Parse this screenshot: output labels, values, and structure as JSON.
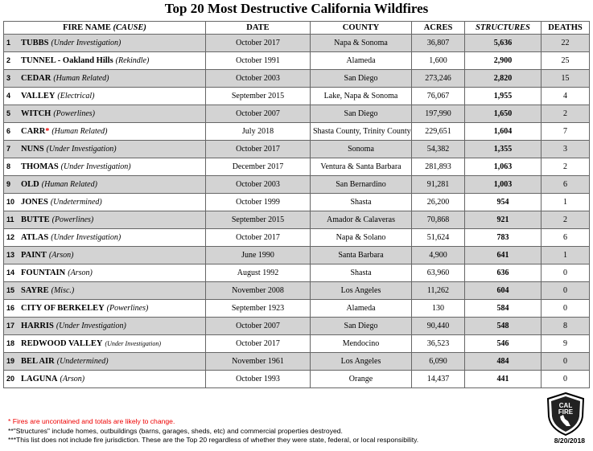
{
  "header": {
    "title": "Top 20 Most Destructive California Wildfires"
  },
  "table": {
    "columns": {
      "name": "FIRE NAME",
      "cause": "(CAUSE)",
      "date": "DATE",
      "county": "COUNTY",
      "acres": "ACRES",
      "structures": "STRUCTURES",
      "deaths": "DEATHS"
    },
    "rows": [
      {
        "rank": 1,
        "name": "TUBBS",
        "cause": "(Under Investigation)",
        "date": "October 2017",
        "county": "Napa & Sonoma",
        "acres": "36,807",
        "structures": "5,636",
        "deaths": 22
      },
      {
        "rank": 2,
        "name": "TUNNEL - Oakland Hills",
        "cause": "(Rekindle)",
        "date": "October 1991",
        "county": "Alameda",
        "acres": "1,600",
        "structures": "2,900",
        "deaths": 25
      },
      {
        "rank": 3,
        "name": "CEDAR",
        "cause": "(Human Related)",
        "date": "October 2003",
        "county": "San Diego",
        "acres": "273,246",
        "structures": "2,820",
        "deaths": 15
      },
      {
        "rank": 4,
        "name": "VALLEY",
        "cause": "(Electrical)",
        "date": "September 2015",
        "county": "Lake, Napa & Sonoma",
        "acres": "76,067",
        "structures": "1,955",
        "deaths": 4
      },
      {
        "rank": 5,
        "name": "WITCH",
        "cause": "(Powerlines)",
        "date": "October 2007",
        "county": "San Diego",
        "acres": "197,990",
        "structures": "1,650",
        "deaths": 2
      },
      {
        "rank": 6,
        "name": "CARR",
        "marker": "*",
        "cause": "(Human Related)",
        "date": "July 2018",
        "county": "Shasta County, Trinity County",
        "acres": "229,651",
        "structures": "1,604",
        "deaths": 7
      },
      {
        "rank": 7,
        "name": "NUNS",
        "cause": "(Under Investigation)",
        "date": "October 2017",
        "county": "Sonoma",
        "acres": "54,382",
        "structures": "1,355",
        "deaths": 3
      },
      {
        "rank": 8,
        "name": "THOMAS",
        "cause": "(Under Investigation)",
        "date": "December 2017",
        "county": "Ventura & Santa Barbara",
        "acres": "281,893",
        "structures": "1,063",
        "deaths": 2
      },
      {
        "rank": 9,
        "name": "OLD",
        "cause": "(Human Related)",
        "date": "October 2003",
        "county": "San Bernardino",
        "acres": "91,281",
        "structures": "1,003",
        "deaths": 6
      },
      {
        "rank": 10,
        "name": "JONES",
        "cause": "(Undetermined)",
        "date": "October 1999",
        "county": "Shasta",
        "acres": "26,200",
        "structures": "954",
        "deaths": 1
      },
      {
        "rank": 11,
        "name": "BUTTE",
        "cause": "(Powerlines)",
        "date": "September 2015",
        "county": "Amador & Calaveras",
        "acres": "70,868",
        "structures": "921",
        "deaths": 2
      },
      {
        "rank": 12,
        "name": "ATLAS",
        "cause": "(Under Investigation)",
        "date": "October 2017",
        "county": "Napa & Solano",
        "acres": "51,624",
        "structures": "783",
        "deaths": 6
      },
      {
        "rank": 13,
        "name": "PAINT",
        "cause": "(Arson)",
        "date": "June 1990",
        "county": "Santa Barbara",
        "acres": "4,900",
        "structures": "641",
        "deaths": 1
      },
      {
        "rank": 14,
        "name": "FOUNTAIN",
        "cause": "(Arson)",
        "date": "August 1992",
        "county": "Shasta",
        "acres": "63,960",
        "structures": "636",
        "deaths": 0
      },
      {
        "rank": 15,
        "name": "SAYRE",
        "cause": "(Misc.)",
        "date": "November 2008",
        "county": "Los Angeles",
        "acres": "11,262",
        "structures": "604",
        "deaths": 0
      },
      {
        "rank": 16,
        "name": "CITY OF BERKELEY",
        "cause": "(Powerlines)",
        "date": "September 1923",
        "county": "Alameda",
        "acres": "130",
        "structures": "584",
        "deaths": 0
      },
      {
        "rank": 17,
        "name": "HARRIS",
        "cause": "(Under Investigation)",
        "date": "October 2007",
        "county": "San Diego",
        "acres": "90,440",
        "structures": "548",
        "deaths": 8
      },
      {
        "rank": 18,
        "name": "REDWOOD VALLEY",
        "cause": "(Under Investigation)",
        "date": "October 2017",
        "county": "Mendocino",
        "acres": "36,523",
        "structures": "546",
        "deaths": 9
      },
      {
        "rank": 19,
        "name": "BEL AIR",
        "cause": "(Undetermined)",
        "date": "November 1961",
        "county": "Los Angeles",
        "acres": "6,090",
        "structures": "484",
        "deaths": 0
      },
      {
        "rank": 20,
        "name": "LAGUNA",
        "cause": "(Arson)",
        "date": "October 1993",
        "county": "Orange",
        "acres": "14,437",
        "structures": "441",
        "deaths": 0
      }
    ]
  },
  "footnotes": [
    "* Fires are uncontained and totals are likely to change.",
    "**\"Structures\" include homes, outbuildings (barns, garages, sheds, etc) and commercial properties destroyed.",
    "***This list does not include fire jurisdiction.  These are the Top 20 regardless of whether they were state, federal, or local responsibility."
  ],
  "footer": {
    "date": "8/20/2018",
    "logo": [
      "CAL",
      "FIRE"
    ]
  }
}
